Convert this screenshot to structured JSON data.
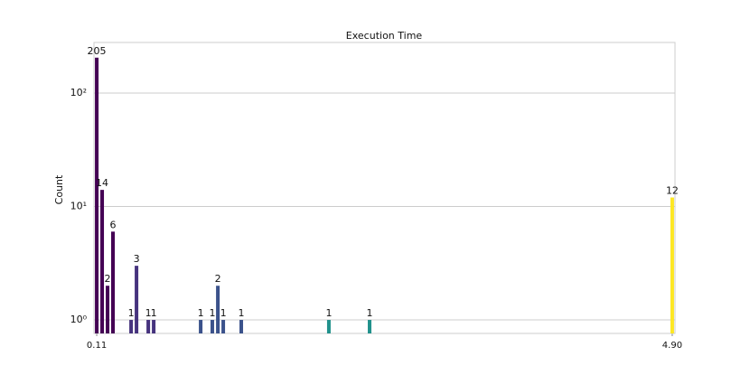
{
  "chart_data": {
    "type": "bar",
    "title": "Execution Time",
    "ylabel": "Count",
    "x": [
      0.11,
      0.155,
      0.2,
      0.245,
      0.396,
      0.441,
      0.539,
      0.584,
      0.975,
      1.072,
      1.118,
      1.163,
      1.313,
      2.042,
      2.381,
      4.9
    ],
    "values": [
      205,
      14,
      2,
      6,
      1,
      3,
      1,
      1,
      1,
      1,
      2,
      1,
      1,
      1,
      1,
      12
    ],
    "colors": [
      "#440154",
      "#440154",
      "#440154",
      "#440154",
      "#46337e",
      "#46337e",
      "#46337e",
      "#46337e",
      "#3b528b",
      "#3b528b",
      "#3b528b",
      "#3b528b",
      "#3b528b",
      "#21918c",
      "#21918c",
      "#fde725"
    ],
    "xlim": [
      0.087,
      4.923
    ],
    "xticks": [
      0.11,
      {
        "value": 4.9,
        "label": "4.90"
      }
    ],
    "ylim": [
      0.76,
      279
    ],
    "log_y": true,
    "yticks": [
      {
        "value": 1,
        "label": "10⁰"
      },
      {
        "value": 10,
        "label": "10¹"
      },
      {
        "value": 100,
        "label": "10²"
      }
    ],
    "grid": true
  }
}
